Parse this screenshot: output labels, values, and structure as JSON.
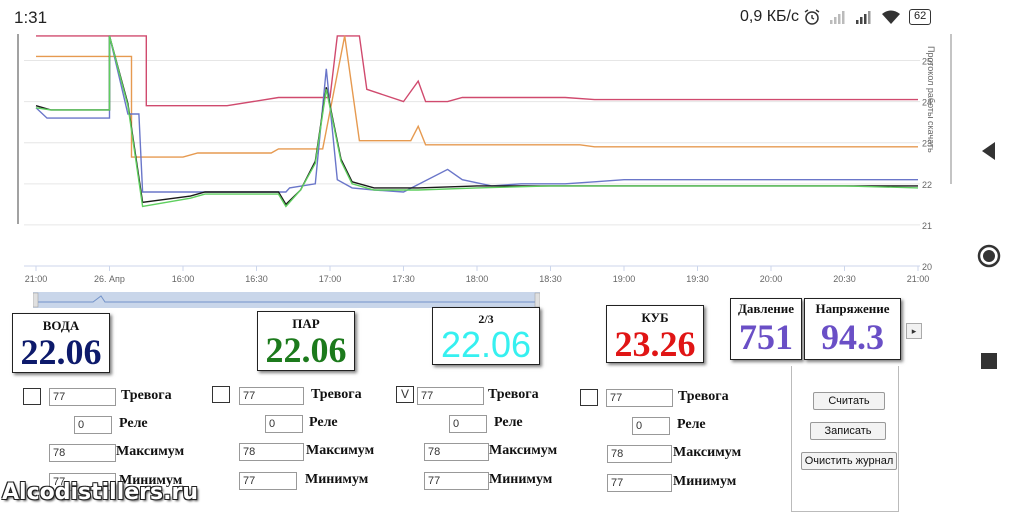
{
  "status": {
    "time": "1:31",
    "speed": "0,9 КБ/с",
    "battery": "62"
  },
  "chart_data": {
    "type": "line",
    "x_ticks": [
      "21:00",
      "26. Апр",
      "16:00",
      "16:30",
      "17:00",
      "17:30",
      "18:00",
      "18:30",
      "19:00",
      "19:30",
      "20:00",
      "20:30",
      "21:00"
    ],
    "y_ticks": [
      "25",
      "24",
      "23",
      "22",
      "21",
      "20"
    ],
    "ylim": [
      20,
      25.5
    ],
    "ylabel": "",
    "side_label": "Протокол работы скачать",
    "grid": true,
    "series": [
      {
        "color": "#d04a6e",
        "points": [
          [
            0,
            25.6
          ],
          [
            0.6,
            25.6
          ],
          [
            1.5,
            25.6
          ],
          [
            1.5,
            23.9
          ],
          [
            2.0,
            23.9
          ],
          [
            2.4,
            23.9
          ],
          [
            2.6,
            23.9
          ],
          [
            3.3,
            24.1
          ],
          [
            4.0,
            24.1
          ],
          [
            4.1,
            25.6
          ],
          [
            4.4,
            25.6
          ],
          [
            4.5,
            24.3
          ],
          [
            5.0,
            24.0
          ],
          [
            5.2,
            24.5
          ],
          [
            5.3,
            24.0
          ],
          [
            5.6,
            24.0
          ],
          [
            5.8,
            24.1
          ],
          [
            6.6,
            24.1
          ],
          [
            7.2,
            24.1
          ],
          [
            7.6,
            24.05
          ],
          [
            8.2,
            24.05
          ],
          [
            8.8,
            24.05
          ],
          [
            10.0,
            24.05
          ],
          [
            11.0,
            24.05
          ],
          [
            12.0,
            24.05
          ]
        ]
      },
      {
        "color": "#e69a50",
        "points": [
          [
            0,
            25.1
          ],
          [
            0.6,
            25.1
          ],
          [
            1.3,
            25.1
          ],
          [
            1.3,
            22.65
          ],
          [
            2.0,
            22.65
          ],
          [
            2.2,
            22.75
          ],
          [
            3.2,
            22.75
          ],
          [
            3.3,
            22.85
          ],
          [
            3.9,
            22.85
          ],
          [
            4.2,
            25.6
          ],
          [
            4.4,
            23.05
          ],
          [
            5.1,
            23.05
          ],
          [
            5.2,
            23.4
          ],
          [
            5.3,
            22.95
          ],
          [
            5.8,
            22.95
          ],
          [
            6.6,
            22.95
          ],
          [
            7.2,
            22.95
          ],
          [
            7.4,
            22.95
          ],
          [
            7.6,
            22.9
          ],
          [
            8.4,
            22.9
          ],
          [
            10.0,
            22.9
          ],
          [
            12.0,
            22.9
          ]
        ]
      },
      {
        "color": "#6a76c9",
        "points": [
          [
            0,
            23.85
          ],
          [
            0.15,
            23.6
          ],
          [
            1.0,
            23.6
          ],
          [
            1.0,
            25.6
          ],
          [
            1.25,
            23.7
          ],
          [
            1.4,
            23.7
          ],
          [
            1.45,
            21.8
          ],
          [
            2.3,
            21.8
          ],
          [
            2.4,
            21.8
          ],
          [
            3.4,
            21.8
          ],
          [
            3.45,
            21.9
          ],
          [
            3.8,
            22.0
          ],
          [
            3.95,
            24.8
          ],
          [
            4.1,
            22.1
          ],
          [
            4.3,
            21.9
          ],
          [
            4.6,
            21.85
          ],
          [
            5.0,
            21.8
          ],
          [
            5.6,
            22.35
          ],
          [
            5.8,
            22.1
          ],
          [
            6.2,
            21.95
          ],
          [
            6.6,
            22.0
          ],
          [
            7.2,
            22.0
          ],
          [
            7.6,
            22.05
          ],
          [
            8.0,
            22.1
          ],
          [
            9.0,
            22.1
          ],
          [
            10.0,
            22.1
          ],
          [
            11.0,
            22.1
          ],
          [
            12.0,
            22.1
          ]
        ]
      },
      {
        "color": "#1a1a1a",
        "points": [
          [
            0,
            23.9
          ],
          [
            0.2,
            23.8
          ],
          [
            1.0,
            23.8
          ],
          [
            1.0,
            25.6
          ],
          [
            1.25,
            23.95
          ],
          [
            1.45,
            21.55
          ],
          [
            2.1,
            21.7
          ],
          [
            2.3,
            21.8
          ],
          [
            3.0,
            21.8
          ],
          [
            3.3,
            21.8
          ],
          [
            3.4,
            21.5
          ],
          [
            3.6,
            21.85
          ],
          [
            3.8,
            22.55
          ],
          [
            3.95,
            24.35
          ],
          [
            4.15,
            22.6
          ],
          [
            4.3,
            22.05
          ],
          [
            4.6,
            21.9
          ],
          [
            5.2,
            21.9
          ],
          [
            6.0,
            21.95
          ],
          [
            7.0,
            21.95
          ],
          [
            8.0,
            21.95
          ],
          [
            9.0,
            21.95
          ],
          [
            10.0,
            21.95
          ],
          [
            11.0,
            21.95
          ],
          [
            12.0,
            21.95
          ]
        ]
      },
      {
        "color": "#5fcf5f",
        "points": [
          [
            0,
            23.85
          ],
          [
            0.2,
            23.8
          ],
          [
            1.0,
            23.8
          ],
          [
            1.0,
            25.6
          ],
          [
            1.25,
            23.9
          ],
          [
            1.45,
            21.45
          ],
          [
            2.1,
            21.65
          ],
          [
            2.3,
            21.75
          ],
          [
            3.0,
            21.75
          ],
          [
            3.3,
            21.75
          ],
          [
            3.4,
            21.45
          ],
          [
            3.6,
            21.85
          ],
          [
            3.8,
            22.5
          ],
          [
            3.95,
            24.3
          ],
          [
            4.15,
            22.55
          ],
          [
            4.3,
            22.0
          ],
          [
            4.6,
            21.85
          ],
          [
            5.2,
            21.85
          ],
          [
            6.0,
            21.9
          ],
          [
            7.0,
            21.95
          ],
          [
            8.0,
            21.95
          ],
          [
            9.0,
            21.95
          ],
          [
            10.0,
            21.95
          ],
          [
            11.0,
            21.95
          ],
          [
            12.0,
            21.9
          ]
        ]
      }
    ]
  },
  "sensors": [
    {
      "label": "ВОДА",
      "value": "22.06",
      "color": "#0d1a6b"
    },
    {
      "label": "ПАР",
      "value": "22.06",
      "color": "#1c7a1c"
    },
    {
      "label": "2/3",
      "value": "22.06",
      "color": "#36f0f0"
    },
    {
      "label": "КУБ",
      "value": "23.26",
      "color": "#e01515"
    },
    {
      "label": "Давление",
      "value": "751",
      "color": "#6a4fc6"
    },
    {
      "label": "Напряжение",
      "value": "94.3",
      "color": "#6a4fc6"
    }
  ],
  "controls": [
    {
      "alarm_checked": "",
      "alarm_value": "77",
      "relay_value": "0",
      "max_value": "78",
      "min_value": "77"
    },
    {
      "alarm_checked": "",
      "alarm_value": "77",
      "relay_value": "0",
      "max_value": "78",
      "min_value": "77"
    },
    {
      "alarm_checked": "V",
      "alarm_value": "77",
      "relay_value": "0",
      "max_value": "78",
      "min_value": "77"
    },
    {
      "alarm_checked": "",
      "alarm_value": "77",
      "relay_value": "0",
      "max_value": "78",
      "min_value": "77"
    }
  ],
  "labels": {
    "alarm": "Тревога",
    "relay": "Реле",
    "max": "Максимум",
    "min": "Минимум"
  },
  "buttons": {
    "read": "Считать",
    "write": "Записать",
    "clear_log": "Очистить журнал"
  },
  "watermark": "Alcodistillers.ru"
}
